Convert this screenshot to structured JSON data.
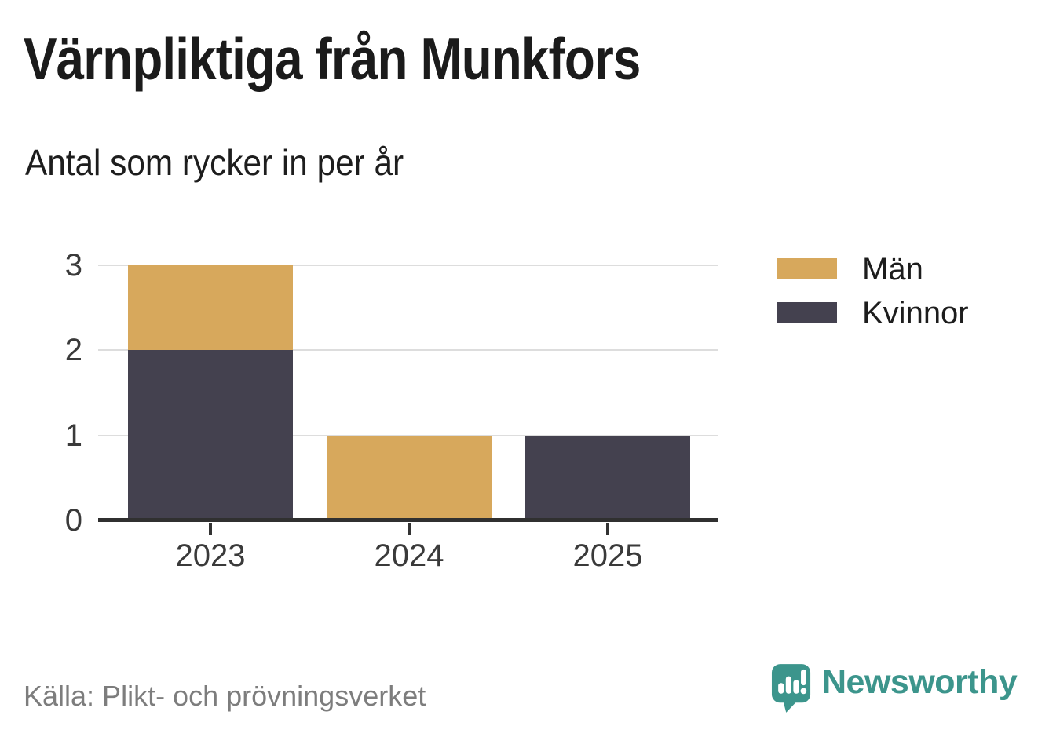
{
  "title": "Värnpliktiga från Munkfors",
  "subtitle": "Antal som rycker in per år",
  "source": "Källa: Plikt- och prövningsverket",
  "branding": {
    "name": "Newsworthy",
    "icon": "speech-bubble-bar-chart-icon",
    "color": "#3c958c"
  },
  "colors": {
    "man": "#d7a85c",
    "kvinnor": "#44414f",
    "axis": "#303030",
    "gridline": "#dddddd",
    "tick_text": "#3a3a3a",
    "text": "#1d1d1d",
    "source_text": "#7d7d7d"
  },
  "chart_data": {
    "type": "bar",
    "stacked": true,
    "title": "Värnpliktiga från Munkfors",
    "subtitle": "Antal som rycker in per år",
    "categories": [
      "2023",
      "2024",
      "2025"
    ],
    "series": [
      {
        "name": "Män",
        "color": "#d7a85c",
        "values": [
          1,
          1,
          0
        ]
      },
      {
        "name": "Kvinnor",
        "color": "#44414f",
        "values": [
          2,
          0,
          1
        ]
      }
    ],
    "totals": [
      3,
      1,
      1
    ],
    "xlabel": "",
    "ylabel": "",
    "ylim": [
      0,
      3
    ],
    "yticks": [
      0,
      1,
      2,
      3
    ],
    "grid": true,
    "legend_position": "right",
    "source": "Källa: Plikt- och prövningsverket"
  }
}
